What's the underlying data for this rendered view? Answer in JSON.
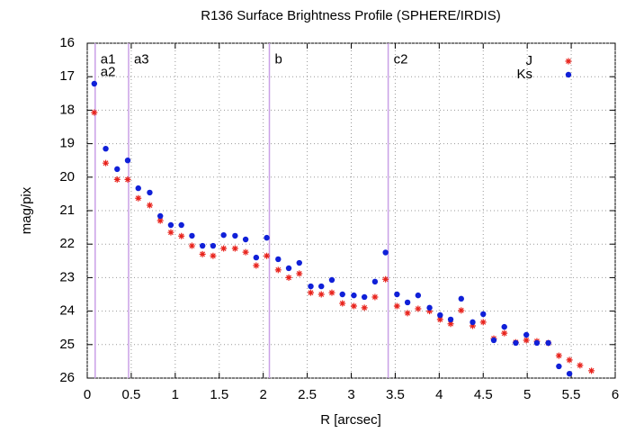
{
  "chart_data": {
    "type": "scatter",
    "title": "R136 Surface Brightness Profile (SPHERE/IRDIS)",
    "xlabel": "R [arcsec]",
    "ylabel": "mag/pix",
    "xlim": [
      0,
      6
    ],
    "xticks": [
      0,
      0.5,
      1,
      1.5,
      2,
      2.5,
      3,
      3.5,
      4,
      4.5,
      5,
      5.5,
      6
    ],
    "ylim": [
      26,
      16
    ],
    "yticks": [
      16,
      17,
      18,
      19,
      20,
      21,
      22,
      23,
      24,
      25,
      26
    ],
    "grid": true,
    "legend": "top-right",
    "vlines": [
      0.09,
      0.47,
      2.07,
      3.42
    ],
    "vline_color": "#c9a0e6",
    "annotations": [
      {
        "text": "a1",
        "x": 0.09,
        "y": 16.5
      },
      {
        "text": "a2",
        "x": 0.09,
        "y": 16.87
      },
      {
        "text": "a3",
        "x": 0.47,
        "y": 16.5
      },
      {
        "text": "b",
        "x": 2.07,
        "y": 16.5
      },
      {
        "text": "c2",
        "x": 3.42,
        "y": 16.5
      }
    ],
    "series": [
      {
        "name": "J",
        "color": "#e8231c",
        "marker": "asterisk",
        "x": [
          0.08,
          0.21,
          0.34,
          0.46,
          0.58,
          0.71,
          0.83,
          0.95,
          1.07,
          1.19,
          1.31,
          1.43,
          1.55,
          1.68,
          1.8,
          1.92,
          2.04,
          2.17,
          2.29,
          2.41,
          2.54,
          2.66,
          2.78,
          2.9,
          3.03,
          3.15,
          3.27,
          3.39,
          3.52,
          3.64,
          3.76,
          3.89,
          4.01,
          4.13,
          4.25,
          4.38,
          4.5,
          4.62,
          4.74,
          4.87,
          4.99,
          5.11,
          5.24,
          5.36,
          5.48,
          5.6,
          5.73
        ],
        "values": [
          18.07,
          19.58,
          20.07,
          20.07,
          20.63,
          20.84,
          21.3,
          21.65,
          21.76,
          22.05,
          22.3,
          22.35,
          22.13,
          22.13,
          22.24,
          22.64,
          22.35,
          22.77,
          23.0,
          22.88,
          23.45,
          23.5,
          23.45,
          23.77,
          23.85,
          23.9,
          23.58,
          23.05,
          23.85,
          24.06,
          23.93,
          24.0,
          24.25,
          24.38,
          23.98,
          24.44,
          24.33,
          24.82,
          24.66,
          24.93,
          24.87,
          24.9,
          24.95,
          25.33,
          25.46,
          25.62,
          25.78
        ]
      },
      {
        "name": "Ks",
        "color": "#1020d8",
        "marker": "circle",
        "x": [
          0.08,
          0.21,
          0.34,
          0.46,
          0.58,
          0.71,
          0.83,
          0.95,
          1.07,
          1.19,
          1.31,
          1.43,
          1.55,
          1.68,
          1.8,
          1.92,
          2.04,
          2.17,
          2.29,
          2.41,
          2.54,
          2.66,
          2.78,
          2.9,
          3.03,
          3.15,
          3.27,
          3.39,
          3.52,
          3.64,
          3.76,
          3.89,
          4.01,
          4.13,
          4.25,
          4.38,
          4.5,
          4.62,
          4.74,
          4.87,
          4.99,
          5.11,
          5.24,
          5.36,
          5.48
        ],
        "values": [
          17.21,
          19.15,
          19.76,
          19.5,
          20.33,
          20.46,
          21.16,
          21.43,
          21.43,
          21.75,
          22.05,
          22.05,
          21.73,
          21.75,
          21.86,
          22.4,
          21.81,
          22.45,
          22.72,
          22.56,
          23.26,
          23.26,
          23.07,
          23.5,
          23.53,
          23.58,
          23.12,
          22.25,
          23.5,
          23.74,
          23.53,
          23.9,
          24.12,
          24.25,
          23.63,
          24.33,
          24.09,
          24.87,
          24.47,
          24.95,
          24.71,
          24.95,
          24.95,
          25.65,
          25.87
        ]
      }
    ]
  }
}
